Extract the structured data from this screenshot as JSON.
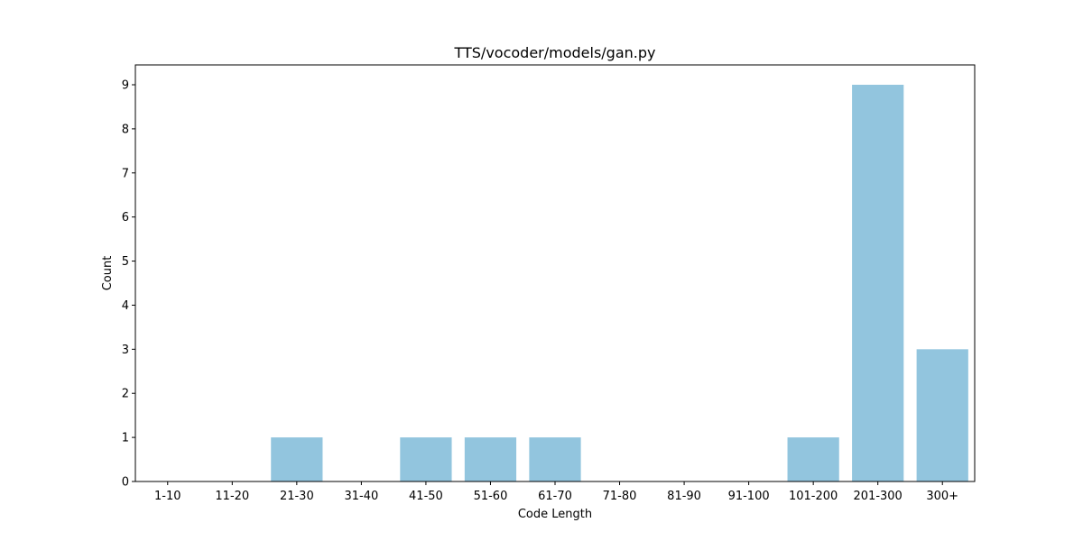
{
  "chart_data": {
    "type": "bar",
    "title": "TTS/vocoder/models/gan.py",
    "xlabel": "Code Length",
    "ylabel": "Count",
    "categories": [
      "1-10",
      "11-20",
      "21-30",
      "31-40",
      "41-50",
      "51-60",
      "61-70",
      "71-80",
      "81-90",
      "91-100",
      "101-200",
      "201-300",
      "300+"
    ],
    "values": [
      0,
      0,
      1,
      0,
      1,
      1,
      1,
      0,
      0,
      0,
      1,
      9,
      3
    ],
    "ylim": [
      0,
      9.45
    ],
    "yticks": [
      "0",
      "1",
      "2",
      "3",
      "4",
      "5",
      "6",
      "7",
      "8",
      "9"
    ],
    "grid": false,
    "bar_color": "#92c5de"
  }
}
